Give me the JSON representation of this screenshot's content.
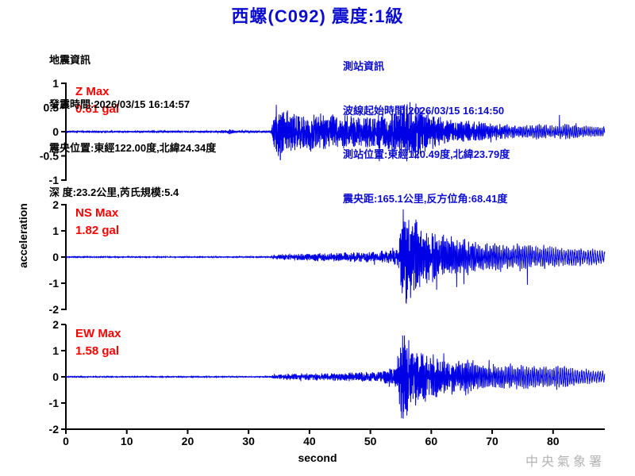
{
  "header": {
    "title": "西螺(C092) 震度:1級"
  },
  "event_info": {
    "lines": [
      "地震資訊",
      "發震時間:2026/03/15 16:14:57",
      "震央位置:東經122.00度,北緯24.34度",
      "深 度:23.2公里,芮氏規模:5.4"
    ]
  },
  "station_info": {
    "lines": [
      "測站資訊",
      "波線起始時間:2026/03/15 16:14:50",
      "測站位置:東經120.49度,北緯23.79度",
      "震央距:165.1公里,反方位角:68.41度"
    ]
  },
  "footer": {
    "agency": "中央氣象署"
  },
  "colors": {
    "title_blue": "#0d0dd0",
    "info_blue": "#0d0dd0",
    "trace_blue": "#0000e6",
    "label_red": "#ff0000",
    "axis_black": "#000000",
    "watermark_gray": "#b4b4b4"
  },
  "chart_data": {
    "type": "line",
    "title": "西螺(C092) 震度:1級",
    "xlabel": "second",
    "ylabel": "acceleration",
    "x_range": [
      0,
      88.5
    ],
    "x_ticks": [
      0,
      10,
      20,
      30,
      40,
      50,
      60,
      70,
      80
    ],
    "grid": false,
    "legend": false,
    "charts": [
      {
        "id": "Z",
        "label": "Z Max",
        "max_text": "0.61 gal",
        "max_value": 0.61,
        "unit": "gal",
        "ylim": [
          -1,
          1
        ],
        "yticks": [
          1,
          0.5,
          0,
          -0.5,
          -1
        ],
        "p_arrival_s": 34,
        "s_arrival_s": 55.3,
        "envelope": [
          [
            0,
            0.012
          ],
          [
            24,
            0.012
          ],
          [
            26,
            0.025
          ],
          [
            27,
            0.05
          ],
          [
            27.8,
            0.02
          ],
          [
            33.6,
            0.014
          ],
          [
            34.2,
            0.3
          ],
          [
            34.8,
            0.55
          ],
          [
            36,
            0.42
          ],
          [
            38,
            0.33
          ],
          [
            41,
            0.3
          ],
          [
            45,
            0.27
          ],
          [
            49,
            0.26
          ],
          [
            52,
            0.3
          ],
          [
            54,
            0.36
          ],
          [
            55.5,
            0.5
          ],
          [
            56.5,
            0.55
          ],
          [
            58,
            0.4
          ],
          [
            60,
            0.32
          ],
          [
            63,
            0.24
          ],
          [
            66,
            0.2
          ],
          [
            69,
            0.18
          ],
          [
            72,
            0.15
          ],
          [
            75,
            0.13
          ],
          [
            78,
            0.16
          ],
          [
            80,
            0.12
          ],
          [
            82,
            0.17
          ],
          [
            84,
            0.14
          ],
          [
            86,
            0.11
          ],
          [
            88.5,
            0.09
          ]
        ],
        "freq": [
          [
            0,
            11
          ],
          [
            50,
            11
          ],
          [
            60,
            7
          ],
          [
            68,
            5
          ],
          [
            75,
            3.5
          ],
          [
            88.5,
            3
          ]
        ],
        "spikiness": [
          [
            0,
            0.8
          ],
          [
            58,
            0.75
          ],
          [
            66,
            0.5
          ],
          [
            74,
            0.35
          ],
          [
            88.5,
            0.3
          ]
        ],
        "forced_peaks": [
          [
            35.2,
            -0.58
          ],
          [
            56.5,
            0.61
          ]
        ]
      },
      {
        "id": "NS",
        "label": "NS Max",
        "max_text": "1.82 gal",
        "max_value": 1.82,
        "unit": "gal",
        "ylim": [
          -2,
          2
        ],
        "yticks": [
          2,
          1,
          0,
          -1,
          -2
        ],
        "p_arrival_s": 34,
        "s_arrival_s": 55.3,
        "envelope": [
          [
            0,
            0.012
          ],
          [
            33.6,
            0.012
          ],
          [
            34.2,
            0.07
          ],
          [
            36,
            0.1
          ],
          [
            40,
            0.12
          ],
          [
            44,
            0.13
          ],
          [
            48,
            0.15
          ],
          [
            51,
            0.17
          ],
          [
            53,
            0.2
          ],
          [
            54.6,
            0.3
          ],
          [
            55.3,
            1.75
          ],
          [
            56.2,
            1.55
          ],
          [
            57,
            1.25
          ],
          [
            58,
            1.0
          ],
          [
            59.5,
            0.85
          ],
          [
            61,
            0.8
          ],
          [
            63,
            0.65
          ],
          [
            65,
            0.7
          ],
          [
            67,
            0.55
          ],
          [
            69,
            0.5
          ],
          [
            71,
            0.55
          ],
          [
            73,
            0.45
          ],
          [
            75,
            0.5
          ],
          [
            77,
            0.4
          ],
          [
            79,
            0.45
          ],
          [
            81,
            0.35
          ],
          [
            83,
            0.4
          ],
          [
            85,
            0.32
          ],
          [
            88.5,
            0.28
          ]
        ],
        "freq": [
          [
            0,
            11
          ],
          [
            52,
            10
          ],
          [
            58,
            7
          ],
          [
            64,
            5
          ],
          [
            72,
            3.5
          ],
          [
            80,
            3
          ],
          [
            88.5,
            2.5
          ]
        ],
        "spikiness": [
          [
            0,
            0.8
          ],
          [
            56,
            0.7
          ],
          [
            64,
            0.5
          ],
          [
            72,
            0.35
          ],
          [
            88.5,
            0.28
          ]
        ],
        "forced_peaks": [
          [
            55.4,
            1.82
          ],
          [
            55.9,
            -1.78
          ]
        ]
      },
      {
        "id": "EW",
        "label": "EW Max",
        "max_text": "1.58 gal",
        "max_value": 1.58,
        "unit": "gal",
        "ylim": [
          -2,
          2
        ],
        "yticks": [
          2,
          1,
          0,
          -1,
          -2
        ],
        "p_arrival_s": 34,
        "s_arrival_s": 55.3,
        "envelope": [
          [
            0,
            0.012
          ],
          [
            33.6,
            0.012
          ],
          [
            34.2,
            0.06
          ],
          [
            36,
            0.09
          ],
          [
            40,
            0.11
          ],
          [
            44,
            0.12
          ],
          [
            47,
            0.14
          ],
          [
            50,
            0.15
          ],
          [
            52,
            0.18
          ],
          [
            54,
            0.28
          ],
          [
            55.3,
            1.5
          ],
          [
            56.2,
            1.25
          ],
          [
            57,
            1.0
          ],
          [
            58.5,
            0.85
          ],
          [
            60,
            0.75
          ],
          [
            62,
            0.62
          ],
          [
            64,
            0.55
          ],
          [
            66,
            0.6
          ],
          [
            68,
            0.5
          ],
          [
            70,
            0.45
          ],
          [
            72,
            0.5
          ],
          [
            74,
            0.42
          ],
          [
            76,
            0.46
          ],
          [
            78,
            0.36
          ],
          [
            80,
            0.42
          ],
          [
            82,
            0.46
          ],
          [
            84,
            0.32
          ],
          [
            86,
            0.26
          ],
          [
            88.5,
            0.22
          ]
        ],
        "freq": [
          [
            0,
            11
          ],
          [
            52,
            10
          ],
          [
            58,
            7
          ],
          [
            64,
            5
          ],
          [
            72,
            3.5
          ],
          [
            80,
            3
          ],
          [
            88.5,
            2.5
          ]
        ],
        "spikiness": [
          [
            0,
            0.8
          ],
          [
            56,
            0.7
          ],
          [
            64,
            0.5
          ],
          [
            72,
            0.35
          ],
          [
            88.5,
            0.28
          ]
        ],
        "forced_peaks": [
          [
            55.6,
            1.58
          ],
          [
            56.0,
            -1.48
          ]
        ]
      }
    ]
  }
}
